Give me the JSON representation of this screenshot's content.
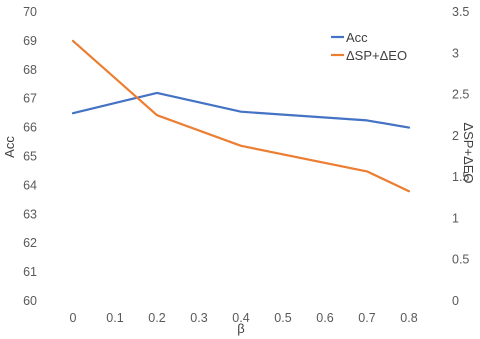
{
  "chart_data": {
    "type": "line",
    "x": [
      0,
      0.1,
      0.2,
      0.3,
      0.4,
      0.5,
      0.6,
      0.7,
      0.8
    ],
    "x_tick_labels": [
      "0",
      "0.1",
      "0.2",
      "0.3",
      "0.4",
      "0.5",
      "0.6",
      "0.7",
      "0.8"
    ],
    "xlabel": "β",
    "ylabel_left": "Acc",
    "ylabel_right": "ΔSP+ΔEO",
    "ylim_left": [
      60,
      70
    ],
    "ylim_right": [
      0,
      3.5
    ],
    "left_tick_labels": [
      "60",
      "61",
      "62",
      "63",
      "64",
      "65",
      "66",
      "67",
      "68",
      "69",
      "70"
    ],
    "right_tick_labels": [
      "0",
      "0.5",
      "1",
      "1.5",
      "2",
      "2.5",
      "3",
      "3.5"
    ],
    "grid": false,
    "legend_position": "top-right",
    "series": [
      {
        "name": "Acc",
        "axis": "left",
        "color": "#4472C4",
        "points": [
          [
            0,
            66.5
          ],
          [
            0.2,
            67.2
          ],
          [
            0.4,
            66.55
          ],
          [
            0.7,
            66.25
          ],
          [
            0.8,
            66.0
          ]
        ]
      },
      {
        "name": "ΔSP+ΔEO",
        "axis": "right",
        "color": "#ED7D31",
        "points": [
          [
            0,
            3.15
          ],
          [
            0.2,
            2.25
          ],
          [
            0.4,
            1.88
          ],
          [
            0.7,
            1.57
          ],
          [
            0.8,
            1.33
          ]
        ]
      }
    ]
  }
}
